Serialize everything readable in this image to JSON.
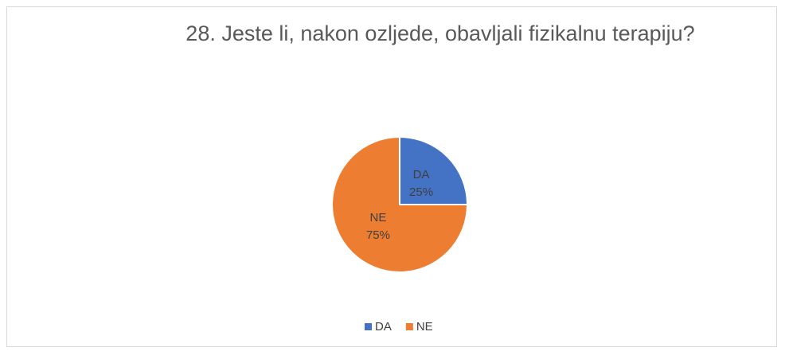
{
  "chart_data": {
    "type": "pie",
    "title": "28. Jeste li, nakon ozljede, obavljali fizikalnu terapiju?",
    "categories": [
      "DA",
      "NE"
    ],
    "values": [
      25,
      75
    ],
    "value_labels": [
      "25%",
      "75%"
    ],
    "colors": [
      "#4472c4",
      "#ed7d31"
    ],
    "legend": "bottom"
  }
}
